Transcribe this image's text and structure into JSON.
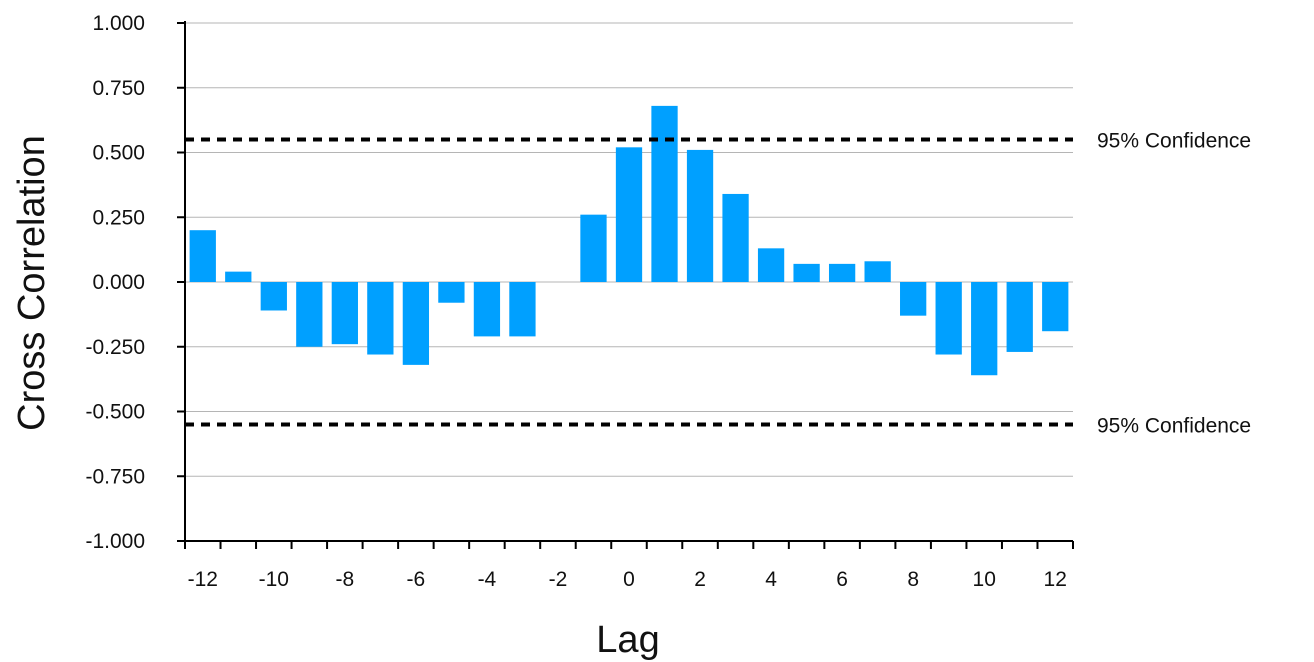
{
  "chart_data": {
    "type": "bar",
    "xlabel": "Lag",
    "ylabel": "Cross Correlation",
    "ylim": [
      -1.0,
      1.0
    ],
    "yticks": [
      "1.000",
      "0.750",
      "0.500",
      "0.250",
      "0.000",
      "-0.250",
      "-0.500",
      "-0.750",
      "-1.000"
    ],
    "xticks": [
      "-12",
      "-10",
      "-8",
      "-6",
      "-4",
      "-2",
      "0",
      "2",
      "4",
      "6",
      "8",
      "10",
      "12"
    ],
    "grid": true,
    "bar_color": "#00A0FF",
    "x": [
      -12,
      -11,
      -10,
      -9,
      -8,
      -7,
      -6,
      -5,
      -4,
      -3,
      -2,
      -1,
      0,
      1,
      2,
      3,
      4,
      5,
      6,
      7,
      8,
      9,
      10,
      11,
      12
    ],
    "values": [
      0.2,
      0.04,
      -0.11,
      -0.25,
      -0.24,
      -0.28,
      -0.32,
      -0.08,
      -0.21,
      -0.21,
      0.0,
      0.26,
      0.52,
      0.68,
      0.51,
      0.34,
      0.13,
      0.07,
      0.07,
      0.08,
      -0.13,
      -0.28,
      -0.36,
      -0.27,
      -0.19
    ],
    "reference_lines": [
      {
        "value": 0.55,
        "label": "95% Confidence"
      },
      {
        "value": -0.55,
        "label": "95% Confidence"
      }
    ]
  }
}
